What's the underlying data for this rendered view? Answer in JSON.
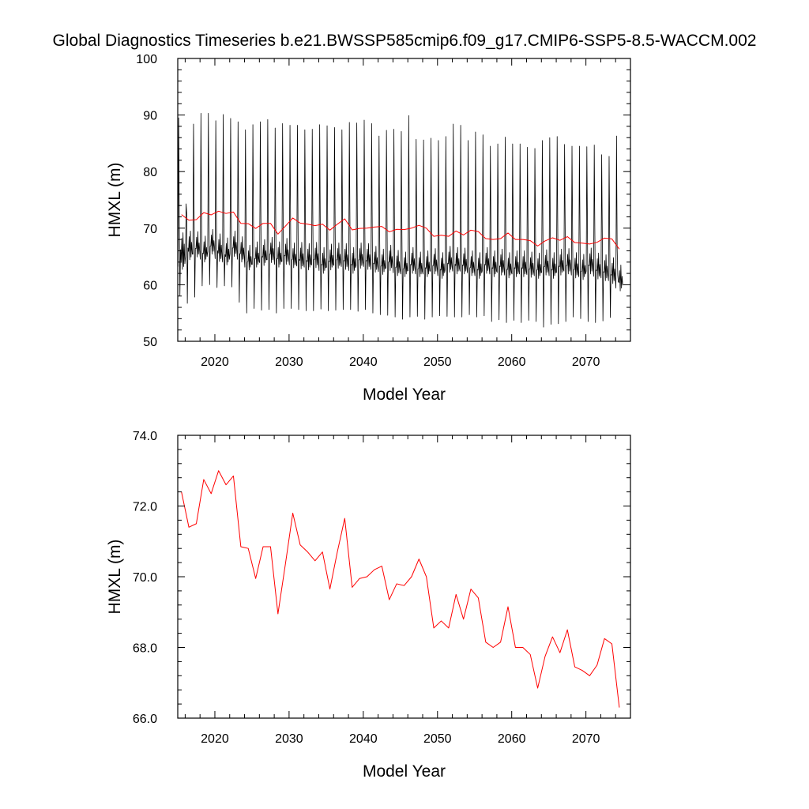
{
  "title": "Global Diagnostics Timeseries b.e21.BWSSP585cmip6.f09_g17.CMIP6-SSP5-8.5-WACCM.002",
  "colors": {
    "monthly": "#000000",
    "annual": "#ff0000"
  },
  "chart_data": [
    {
      "type": "line",
      "xlabel": "Model Year",
      "ylabel": "HMXL (m)",
      "xlim": [
        2015,
        2076
      ],
      "ylim": [
        50,
        100
      ],
      "xticks": [
        2020,
        2030,
        2040,
        2050,
        2060,
        2070
      ],
      "yticks": [
        50,
        60,
        70,
        80,
        90,
        100
      ],
      "yticklabels": [
        "50",
        "60",
        "70",
        "80",
        "90",
        "100"
      ],
      "series": [
        {
          "key": "monthly",
          "color": "#000000",
          "x_start": 2015.04,
          "x_step": 0.0833,
          "annual_peak_values": [
            89.5,
            74.3,
            88.4,
            90.3,
            90.3,
            89.0,
            90.1,
            89.4,
            88.8,
            87.4,
            88.3,
            88.8,
            89.2,
            87.7,
            88.5,
            88.2,
            88.2,
            87.4,
            87.5,
            88.3,
            88.1,
            87.8,
            87.4,
            88.7,
            88.6,
            89.1,
            88.5,
            86.3,
            87.3,
            87.5,
            87.1,
            89.9,
            85.7,
            85.6,
            85.9,
            85.5,
            86.2,
            88.4,
            88.2,
            85.5,
            87.0,
            86.5,
            84.5,
            84.9,
            86.1,
            84.9,
            84.9,
            84.3,
            84.1,
            85.5,
            86.0,
            86.2,
            84.8,
            84.5,
            84.5,
            84.4,
            84.7,
            83.0,
            82.7,
            86.3
          ],
          "annual_trough_values": [
            58.1,
            56.7,
            57.8,
            59.8,
            60.0,
            59.5,
            59.8,
            59.6,
            56.9,
            55.0,
            55.8,
            55.5,
            55.6,
            55.0,
            55.8,
            55.8,
            55.6,
            55.4,
            55.4,
            55.7,
            55.4,
            55.5,
            55.6,
            55.6,
            55.3,
            55.6,
            55.0,
            54.7,
            54.6,
            54.3,
            53.9,
            54.3,
            54.4,
            53.9,
            54.3,
            54.5,
            54.4,
            54.3,
            54.3,
            54.7,
            54.3,
            54.5,
            53.5,
            53.8,
            53.3,
            53.7,
            53.3,
            53.7,
            53.5,
            52.5,
            53.0,
            53.1,
            53.5,
            54.3,
            54.0,
            53.5,
            53.3,
            53.6,
            54.2,
            61.7
          ],
          "secondary_peak_values": [
            68.2,
            68.5,
            68.4,
            67.6,
            68.8,
            68.0,
            67.3,
            68.5,
            67.5,
            66.0,
            66.6,
            67.0,
            67.4,
            66.6,
            67.2,
            66.4,
            66.5,
            66.3,
            66.5,
            65.6,
            66.2,
            66.4,
            66.3,
            65.6,
            66.4,
            66.3,
            65.8,
            65.3,
            66.0,
            65.1,
            64.8,
            65.6,
            64.8,
            65.0,
            65.4,
            64.7,
            65.8,
            65.6,
            65.5,
            65.0,
            64.7,
            65.6,
            65.0,
            65.3,
            64.7,
            65.0,
            65.0,
            64.8,
            64.6,
            65.2,
            64.7,
            65.3,
            65.4,
            64.7,
            64.4,
            65.5,
            64.6,
            64.3,
            63.8,
            62.5
          ],
          "secondary_trough_values": [
            63.2,
            64.9,
            65.4,
            64.5,
            65.9,
            64.6,
            64.0,
            65.5,
            64.5,
            63.1,
            63.6,
            63.9,
            64.4,
            63.6,
            64.1,
            63.5,
            63.3,
            63.1,
            63.5,
            62.5,
            63.1,
            63.4,
            63.2,
            62.5,
            63.4,
            63.2,
            62.7,
            62.3,
            63.0,
            62.1,
            61.9,
            62.5,
            61.9,
            61.9,
            62.4,
            61.6,
            62.7,
            62.4,
            62.4,
            62.1,
            61.6,
            62.5,
            61.9,
            62.2,
            61.7,
            61.9,
            61.9,
            61.8,
            61.6,
            62.2,
            61.6,
            62.2,
            62.4,
            61.7,
            61.4,
            62.4,
            61.5,
            61.2,
            60.7,
            59.4
          ]
        },
        {
          "key": "annual",
          "color": "#ff0000",
          "x": [
            2015.5,
            2016.5,
            2017.5,
            2018.5,
            2019.5,
            2020.5,
            2021.5,
            2022.5,
            2023.5,
            2024.5,
            2025.5,
            2026.5,
            2027.5,
            2028.5,
            2029.5,
            2030.5,
            2031.5,
            2032.5,
            2033.5,
            2034.5,
            2035.5,
            2036.5,
            2037.5,
            2038.5,
            2039.5,
            2040.5,
            2041.5,
            2042.5,
            2043.5,
            2044.5,
            2045.5,
            2046.5,
            2047.5,
            2048.5,
            2049.5,
            2050.5,
            2051.5,
            2052.5,
            2053.5,
            2054.5,
            2055.5,
            2056.5,
            2057.5,
            2058.5,
            2059.5,
            2060.5,
            2061.5,
            2062.5,
            2063.5,
            2064.5,
            2065.5,
            2066.5,
            2067.5,
            2068.5,
            2069.5,
            2070.5,
            2071.5,
            2072.5,
            2073.5,
            2074.5
          ],
          "values": [
            72.4,
            71.4,
            71.5,
            72.75,
            72.35,
            73.0,
            72.6,
            72.85,
            70.85,
            70.8,
            69.95,
            70.85,
            70.85,
            68.95,
            70.35,
            71.8,
            70.9,
            70.7,
            70.45,
            70.7,
            69.65,
            70.7,
            71.65,
            69.7,
            69.95,
            70.0,
            70.2,
            70.3,
            69.35,
            69.8,
            69.75,
            70.0,
            70.5,
            70.0,
            68.55,
            68.75,
            68.55,
            69.5,
            68.8,
            69.65,
            69.4,
            68.15,
            68.0,
            68.15,
            69.15,
            68.0,
            68.0,
            67.8,
            66.85,
            67.75,
            68.3,
            67.85,
            68.5,
            67.45,
            67.35,
            67.2,
            67.5,
            68.25,
            68.1,
            66.3
          ]
        }
      ]
    },
    {
      "type": "line",
      "xlabel": "Model Year",
      "ylabel": "HMXL (m)",
      "xlim": [
        2015,
        2076
      ],
      "ylim": [
        66,
        74
      ],
      "xticks": [
        2020,
        2030,
        2040,
        2050,
        2060,
        2070
      ],
      "yticks": [
        66,
        68,
        70,
        72,
        74
      ],
      "yticklabels": [
        "66.0",
        "68.0",
        "70.0",
        "72.0",
        "74.0"
      ],
      "series": [
        {
          "key": "annual",
          "color": "#ff0000",
          "x": [
            2015.5,
            2016.5,
            2017.5,
            2018.5,
            2019.5,
            2020.5,
            2021.5,
            2022.5,
            2023.5,
            2024.5,
            2025.5,
            2026.5,
            2027.5,
            2028.5,
            2029.5,
            2030.5,
            2031.5,
            2032.5,
            2033.5,
            2034.5,
            2035.5,
            2036.5,
            2037.5,
            2038.5,
            2039.5,
            2040.5,
            2041.5,
            2042.5,
            2043.5,
            2044.5,
            2045.5,
            2046.5,
            2047.5,
            2048.5,
            2049.5,
            2050.5,
            2051.5,
            2052.5,
            2053.5,
            2054.5,
            2055.5,
            2056.5,
            2057.5,
            2058.5,
            2059.5,
            2060.5,
            2061.5,
            2062.5,
            2063.5,
            2064.5,
            2065.5,
            2066.5,
            2067.5,
            2068.5,
            2069.5,
            2070.5,
            2071.5,
            2072.5,
            2073.5,
            2074.5
          ],
          "values": [
            72.4,
            71.4,
            71.5,
            72.75,
            72.35,
            73.0,
            72.6,
            72.85,
            70.85,
            70.8,
            69.95,
            70.85,
            70.85,
            68.95,
            70.35,
            71.8,
            70.9,
            70.7,
            70.45,
            70.7,
            69.65,
            70.7,
            71.65,
            69.7,
            69.95,
            70.0,
            70.2,
            70.3,
            69.35,
            69.8,
            69.75,
            70.0,
            70.5,
            70.0,
            68.55,
            68.75,
            68.55,
            69.5,
            68.8,
            69.65,
            69.4,
            68.15,
            68.0,
            68.15,
            69.15,
            68.0,
            68.0,
            67.8,
            66.85,
            67.75,
            68.3,
            67.85,
            68.5,
            67.45,
            67.35,
            67.2,
            67.5,
            68.25,
            68.1,
            66.3
          ]
        }
      ]
    }
  ]
}
